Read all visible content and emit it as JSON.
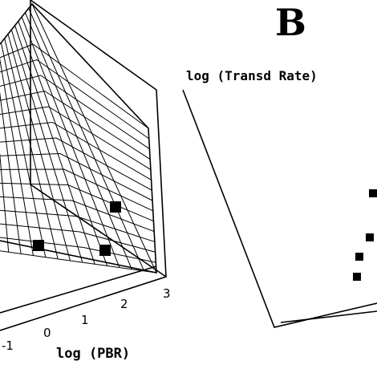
{
  "panel_letter": "B",
  "chart_data": [
    {
      "type": "scatter",
      "subtype": "3d-surface-with-points",
      "xlabel": "log (PBR)",
      "x_ticks": [
        "-1",
        "0",
        "1",
        "2",
        "3"
      ],
      "points": [
        {
          "label": "pt-1"
        },
        {
          "label": "pt-2"
        },
        {
          "label": "pt-3"
        }
      ]
    },
    {
      "type": "scatter",
      "subtype": "3d-points",
      "zlabel": "log (Transd Rate)",
      "points": [
        {
          "label": "pt-1"
        },
        {
          "label": "pt-2"
        },
        {
          "label": "pt-3"
        },
        {
          "label": "pt-4"
        }
      ]
    }
  ]
}
